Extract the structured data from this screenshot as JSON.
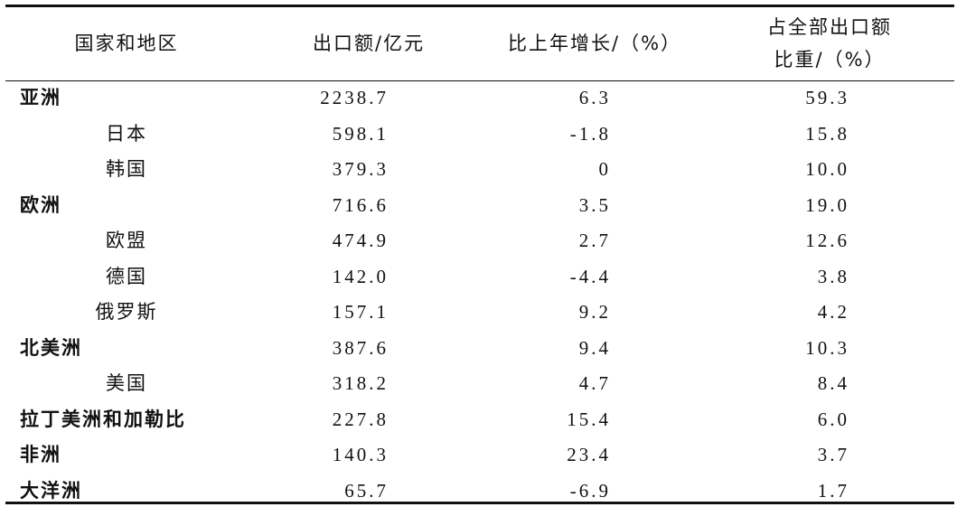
{
  "table": {
    "header": [
      "国家和地区",
      "出口额/亿元",
      "比上年增长/（%）",
      [
        "占全部出口额",
        "比重/（%）"
      ]
    ],
    "groups": [
      {
        "name": "亚洲",
        "values": [
          "2238.7",
          "6.3",
          "59.3"
        ],
        "children": [
          {
            "name": "日本",
            "values": [
              "598.1",
              "-1.8",
              "15.8"
            ]
          },
          {
            "name": "韩国",
            "values": [
              "379.3",
              "0",
              "10.0"
            ]
          }
        ]
      },
      {
        "name": "欧洲",
        "values": [
          "716.6",
          "3.5",
          "19.0"
        ],
        "children": [
          {
            "name": "欧盟",
            "values": [
              "474.9",
              "2.7",
              "12.6"
            ]
          },
          {
            "name": "德国",
            "values": [
              "142.0",
              "-4.4",
              "3.8"
            ]
          },
          {
            "name": "俄罗斯",
            "values": [
              "157.1",
              "9.2",
              "4.2"
            ]
          }
        ]
      },
      {
        "name": "北美洲",
        "values": [
          "387.6",
          "9.4",
          "10.3"
        ],
        "children": [
          {
            "name": "美国",
            "values": [
              "318.2",
              "4.7",
              "8.4"
            ]
          }
        ]
      },
      {
        "name": "拉丁美洲和加勒比",
        "values": [
          "227.8",
          "15.4",
          "6.0"
        ],
        "children": []
      },
      {
        "name": "非洲",
        "values": [
          "140.3",
          "23.4",
          "3.7"
        ],
        "children": []
      },
      {
        "name": "大洋洲",
        "values": [
          "65.7",
          "-6.9",
          "1.7"
        ],
        "children": []
      }
    ]
  }
}
